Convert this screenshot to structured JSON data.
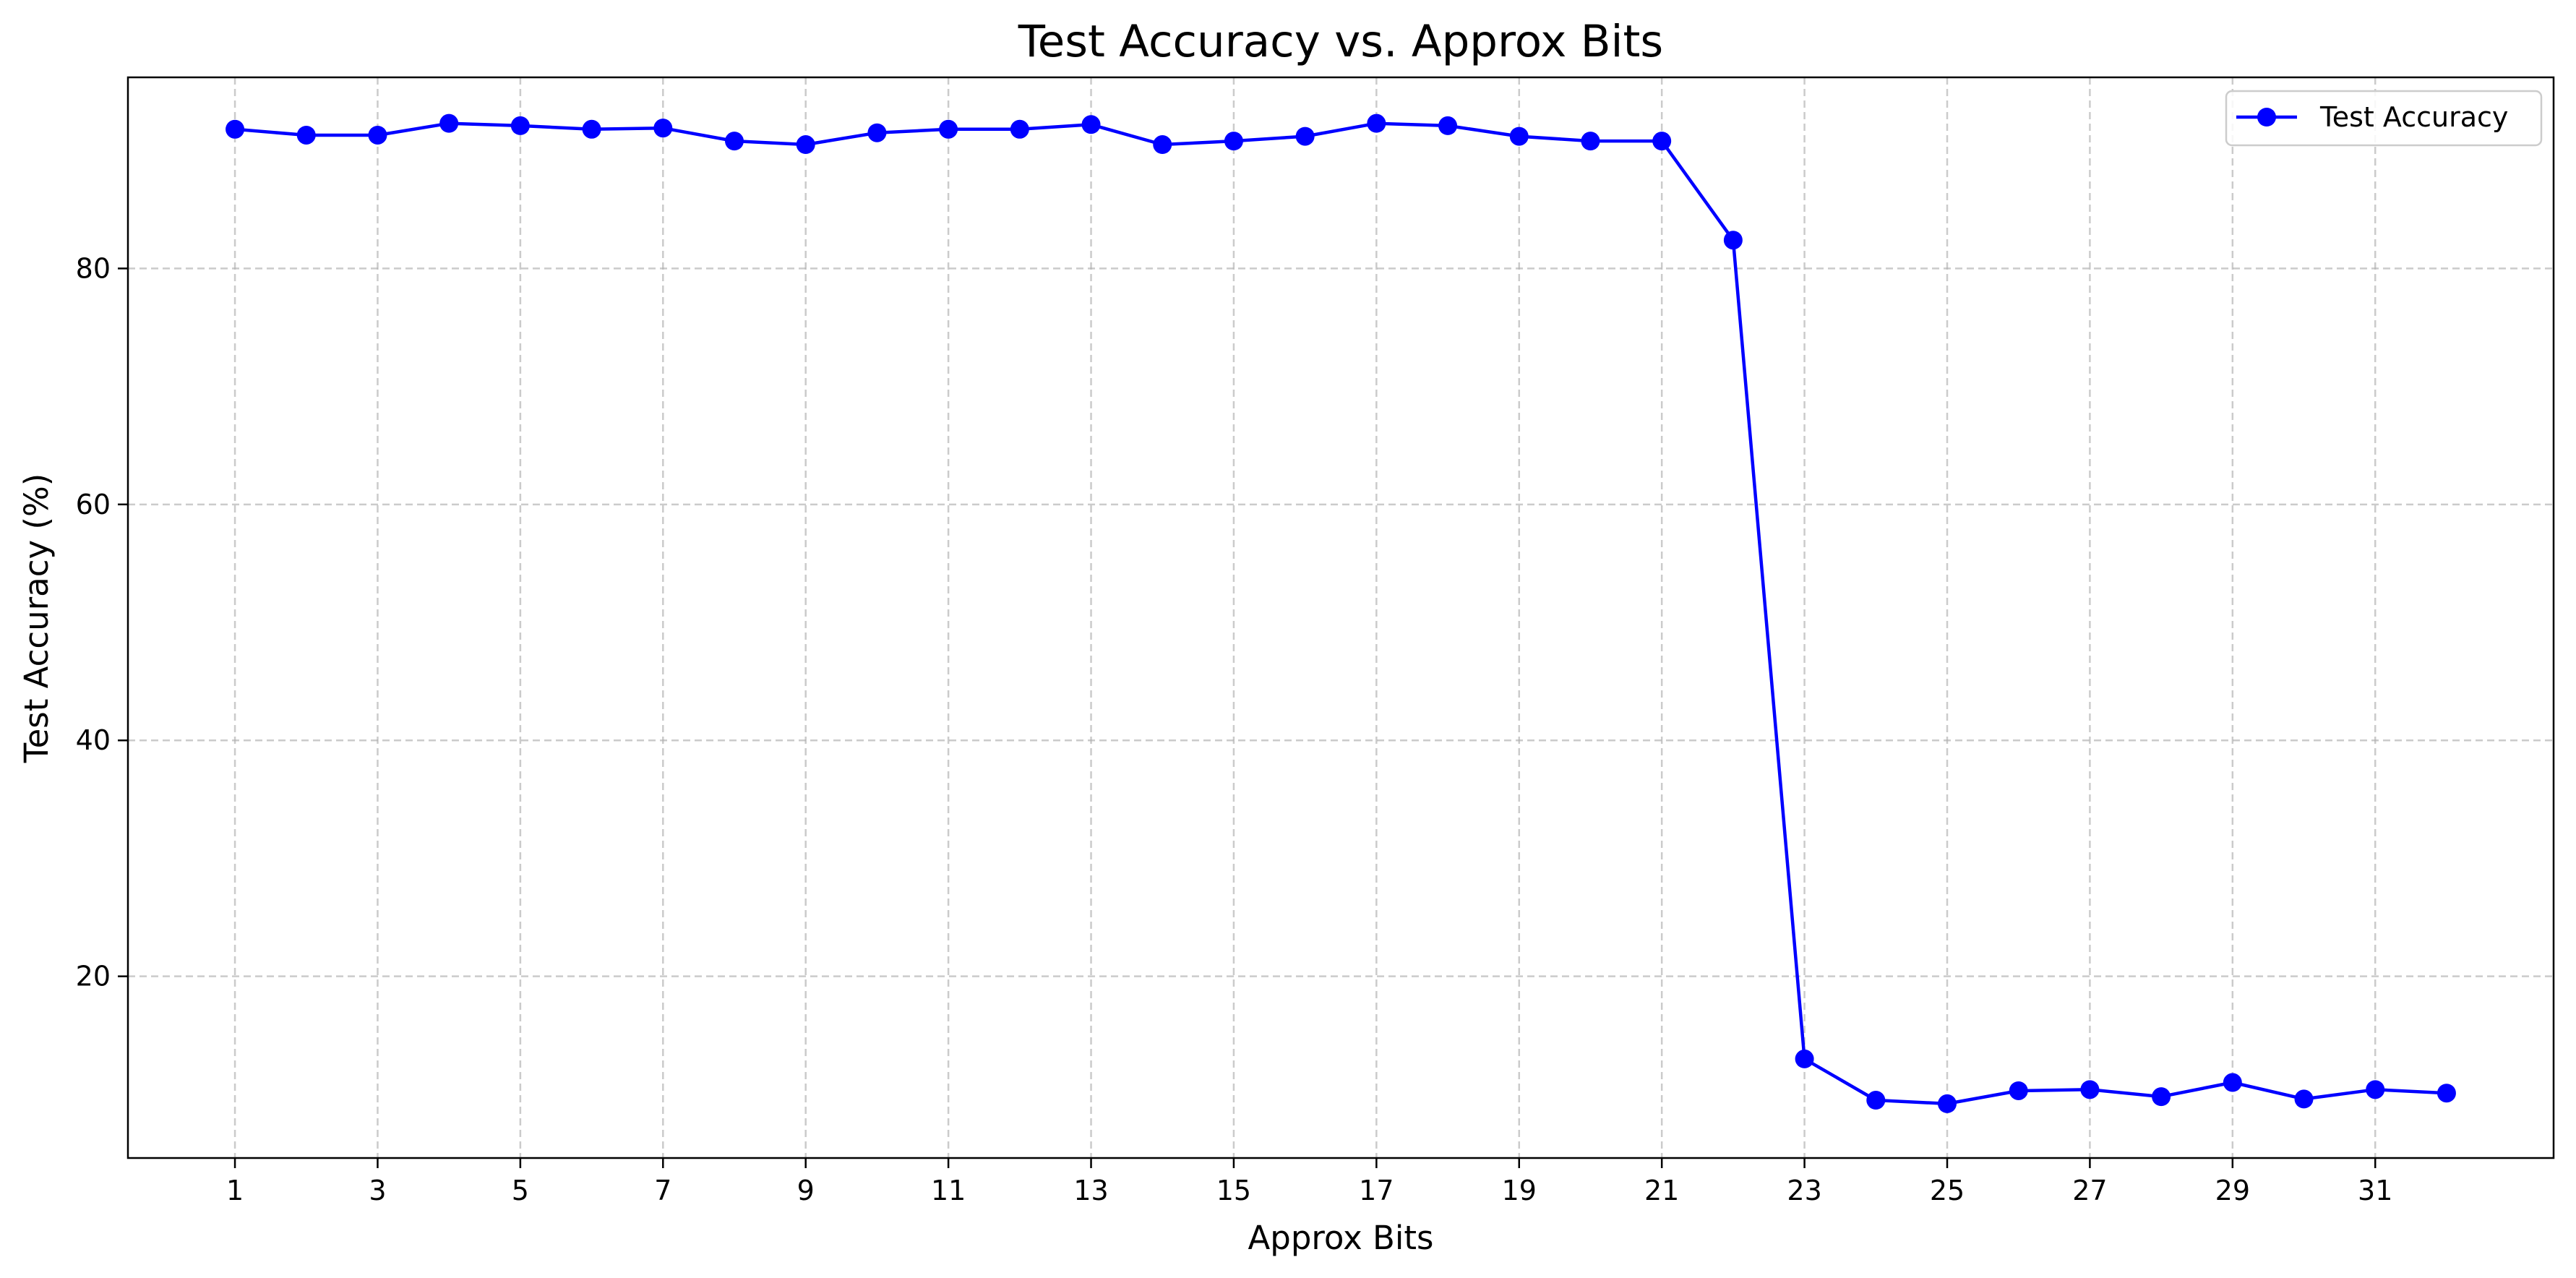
{
  "chart_data": {
    "type": "line",
    "title": "Test Accuracy vs. Approx Bits",
    "xlabel": "Approx Bits",
    "ylabel": "Test Accuracy (%)",
    "xlim": [
      -0.5,
      33.5
    ],
    "ylim": [
      4.6,
      96.2
    ],
    "x_ticks": [
      1,
      3,
      5,
      7,
      9,
      11,
      13,
      15,
      17,
      19,
      21,
      23,
      25,
      27,
      29,
      31
    ],
    "y_ticks": [
      20,
      40,
      60,
      80
    ],
    "grid": true,
    "legend_position": "top-right",
    "series": [
      {
        "name": "Test Accuracy",
        "color": "#0000ff",
        "marker": "circle",
        "x": [
          1,
          2,
          3,
          4,
          5,
          6,
          7,
          8,
          9,
          10,
          11,
          12,
          13,
          14,
          15,
          16,
          17,
          18,
          19,
          20,
          21,
          22,
          23,
          24,
          25,
          26,
          27,
          28,
          29,
          30,
          31,
          32
        ],
        "y": [
          91.8,
          91.3,
          91.3,
          92.3,
          92.1,
          91.8,
          91.9,
          90.8,
          90.5,
          91.5,
          91.8,
          91.8,
          92.2,
          90.5,
          90.8,
          91.2,
          92.3,
          92.1,
          91.2,
          90.8,
          90.8,
          82.4,
          13.0,
          9.5,
          9.2,
          10.3,
          10.4,
          9.8,
          11.0,
          9.6,
          10.4,
          10.1
        ]
      }
    ]
  }
}
